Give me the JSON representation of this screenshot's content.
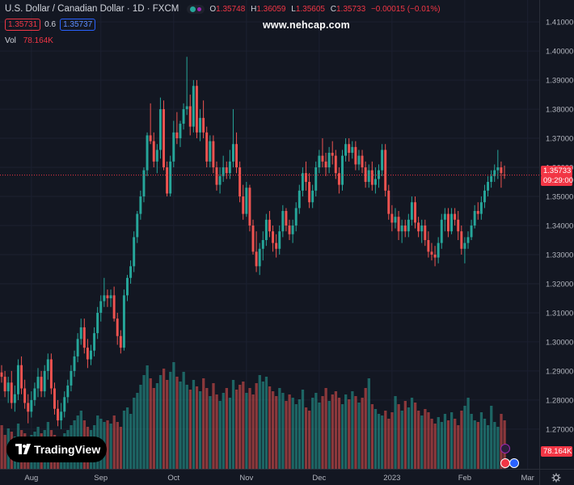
{
  "header": {
    "symbol": "U.S. Dollar / Canadian Dollar · 1D · FXCM",
    "ohlc": {
      "o_label": "O",
      "o": "1.35748",
      "h_label": "H",
      "h": "1.36059",
      "l_label": "L",
      "l": "1.35605",
      "c_label": "C",
      "c": "1.35733",
      "change": "−0.00015 (−0.01%)"
    },
    "sell_price": "1.35731",
    "spread": "0.6",
    "buy_price": "1.35737",
    "volume_label": "Vol",
    "volume_value": "78.164K"
  },
  "watermark": "www.nehcap.com",
  "logo_text": "TradingView",
  "price_badge": {
    "price": "1.35733",
    "countdown": "09:29:00"
  },
  "volume_badge": "78.164K",
  "colors": {
    "up": "#26a69a",
    "down": "#ef5350",
    "background": "#131722",
    "last_price": "#f23645"
  },
  "chart_data": {
    "type": "candlestick",
    "title": "",
    "y_axis": {
      "ticks": [
        "1.41000",
        "1.40000",
        "1.39000",
        "1.38000",
        "1.37000",
        "1.36000",
        "1.35000",
        "1.34000",
        "1.33000",
        "1.32000",
        "1.31000",
        "1.30000",
        "1.29000",
        "1.28000",
        "1.27000"
      ],
      "range": [
        1.2658,
        1.4142
      ]
    },
    "x_axis": {
      "ticks": [
        "Aug",
        "Sep",
        "Oct",
        "Nov",
        "Dec",
        "2023",
        "Feb",
        "Mar"
      ]
    },
    "last_price": 1.35733,
    "candles": [
      {
        "o": 1.2895,
        "h": 1.292,
        "l": 1.286,
        "c": 1.288
      },
      {
        "o": 1.288,
        "h": 1.29,
        "l": 1.281,
        "c": 1.283
      },
      {
        "o": 1.283,
        "h": 1.288,
        "l": 1.279,
        "c": 1.286
      },
      {
        "o": 1.286,
        "h": 1.29,
        "l": 1.277,
        "c": 1.279
      },
      {
        "o": 1.279,
        "h": 1.285,
        "l": 1.276,
        "c": 1.282
      },
      {
        "o": 1.282,
        "h": 1.294,
        "l": 1.28,
        "c": 1.292
      },
      {
        "o": 1.292,
        "h": 1.295,
        "l": 1.282,
        "c": 1.284
      },
      {
        "o": 1.284,
        "h": 1.287,
        "l": 1.277,
        "c": 1.279
      },
      {
        "o": 1.279,
        "h": 1.282,
        "l": 1.272,
        "c": 1.276
      },
      {
        "o": 1.276,
        "h": 1.283,
        "l": 1.274,
        "c": 1.28
      },
      {
        "o": 1.28,
        "h": 1.286,
        "l": 1.278,
        "c": 1.284
      },
      {
        "o": 1.284,
        "h": 1.291,
        "l": 1.281,
        "c": 1.288
      },
      {
        "o": 1.288,
        "h": 1.29,
        "l": 1.281,
        "c": 1.283
      },
      {
        "o": 1.283,
        "h": 1.292,
        "l": 1.281,
        "c": 1.29
      },
      {
        "o": 1.29,
        "h": 1.296,
        "l": 1.287,
        "c": 1.294
      },
      {
        "o": 1.294,
        "h": 1.296,
        "l": 1.282,
        "c": 1.284
      },
      {
        "o": 1.284,
        "h": 1.286,
        "l": 1.275,
        "c": 1.277
      },
      {
        "o": 1.277,
        "h": 1.28,
        "l": 1.271,
        "c": 1.273
      },
      {
        "o": 1.273,
        "h": 1.279,
        "l": 1.27,
        "c": 1.276
      },
      {
        "o": 1.276,
        "h": 1.283,
        "l": 1.274,
        "c": 1.281
      },
      {
        "o": 1.281,
        "h": 1.287,
        "l": 1.279,
        "c": 1.285
      },
      {
        "o": 1.285,
        "h": 1.292,
        "l": 1.283,
        "c": 1.29
      },
      {
        "o": 1.29,
        "h": 1.297,
        "l": 1.288,
        "c": 1.295
      },
      {
        "o": 1.295,
        "h": 1.303,
        "l": 1.293,
        "c": 1.301
      },
      {
        "o": 1.301,
        "h": 1.308,
        "l": 1.299,
        "c": 1.305
      },
      {
        "o": 1.305,
        "h": 1.308,
        "l": 1.296,
        "c": 1.298
      },
      {
        "o": 1.298,
        "h": 1.301,
        "l": 1.291,
        "c": 1.294
      },
      {
        "o": 1.294,
        "h": 1.299,
        "l": 1.292,
        "c": 1.297
      },
      {
        "o": 1.297,
        "h": 1.305,
        "l": 1.295,
        "c": 1.303
      },
      {
        "o": 1.303,
        "h": 1.312,
        "l": 1.301,
        "c": 1.31
      },
      {
        "o": 1.31,
        "h": 1.316,
        "l": 1.307,
        "c": 1.314
      },
      {
        "o": 1.314,
        "h": 1.322,
        "l": 1.312,
        "c": 1.316
      },
      {
        "o": 1.316,
        "h": 1.318,
        "l": 1.312,
        "c": 1.315
      },
      {
        "o": 1.315,
        "h": 1.318,
        "l": 1.312,
        "c": 1.316
      },
      {
        "o": 1.316,
        "h": 1.319,
        "l": 1.307,
        "c": 1.308
      },
      {
        "o": 1.308,
        "h": 1.31,
        "l": 1.299,
        "c": 1.302
      },
      {
        "o": 1.302,
        "h": 1.304,
        "l": 1.296,
        "c": 1.298
      },
      {
        "o": 1.298,
        "h": 1.318,
        "l": 1.297,
        "c": 1.316
      },
      {
        "o": 1.316,
        "h": 1.323,
        "l": 1.314,
        "c": 1.322
      },
      {
        "o": 1.322,
        "h": 1.328,
        "l": 1.32,
        "c": 1.326
      },
      {
        "o": 1.326,
        "h": 1.338,
        "l": 1.324,
        "c": 1.336
      },
      {
        "o": 1.336,
        "h": 1.345,
        "l": 1.334,
        "c": 1.344
      },
      {
        "o": 1.344,
        "h": 1.352,
        "l": 1.342,
        "c": 1.35
      },
      {
        "o": 1.35,
        "h": 1.36,
        "l": 1.348,
        "c": 1.359
      },
      {
        "o": 1.359,
        "h": 1.372,
        "l": 1.357,
        "c": 1.371
      },
      {
        "o": 1.371,
        "h": 1.382,
        "l": 1.368,
        "c": 1.369
      },
      {
        "o": 1.369,
        "h": 1.372,
        "l": 1.36,
        "c": 1.362
      },
      {
        "o": 1.362,
        "h": 1.368,
        "l": 1.358,
        "c": 1.366
      },
      {
        "o": 1.366,
        "h": 1.384,
        "l": 1.363,
        "c": 1.38
      },
      {
        "o": 1.38,
        "h": 1.383,
        "l": 1.359,
        "c": 1.36
      },
      {
        "o": 1.36,
        "h": 1.362,
        "l": 1.35,
        "c": 1.351
      },
      {
        "o": 1.351,
        "h": 1.364,
        "l": 1.35,
        "c": 1.362
      },
      {
        "o": 1.362,
        "h": 1.376,
        "l": 1.36,
        "c": 1.372
      },
      {
        "o": 1.372,
        "h": 1.379,
        "l": 1.368,
        "c": 1.37
      },
      {
        "o": 1.37,
        "h": 1.376,
        "l": 1.367,
        "c": 1.375
      },
      {
        "o": 1.375,
        "h": 1.382,
        "l": 1.373,
        "c": 1.38
      },
      {
        "o": 1.38,
        "h": 1.398,
        "l": 1.378,
        "c": 1.381
      },
      {
        "o": 1.381,
        "h": 1.385,
        "l": 1.371,
        "c": 1.374
      },
      {
        "o": 1.374,
        "h": 1.39,
        "l": 1.372,
        "c": 1.388
      },
      {
        "o": 1.388,
        "h": 1.39,
        "l": 1.37,
        "c": 1.372
      },
      {
        "o": 1.372,
        "h": 1.38,
        "l": 1.369,
        "c": 1.377
      },
      {
        "o": 1.377,
        "h": 1.383,
        "l": 1.37,
        "c": 1.372
      },
      {
        "o": 1.372,
        "h": 1.374,
        "l": 1.36,
        "c": 1.362
      },
      {
        "o": 1.362,
        "h": 1.371,
        "l": 1.36,
        "c": 1.369
      },
      {
        "o": 1.369,
        "h": 1.371,
        "l": 1.358,
        "c": 1.36
      },
      {
        "o": 1.36,
        "h": 1.362,
        "l": 1.352,
        "c": 1.354
      },
      {
        "o": 1.354,
        "h": 1.36,
        "l": 1.351,
        "c": 1.357
      },
      {
        "o": 1.357,
        "h": 1.364,
        "l": 1.355,
        "c": 1.36
      },
      {
        "o": 1.36,
        "h": 1.362,
        "l": 1.356,
        "c": 1.358
      },
      {
        "o": 1.358,
        "h": 1.366,
        "l": 1.356,
        "c": 1.362
      },
      {
        "o": 1.362,
        "h": 1.38,
        "l": 1.36,
        "c": 1.368
      },
      {
        "o": 1.368,
        "h": 1.372,
        "l": 1.358,
        "c": 1.36
      },
      {
        "o": 1.36,
        "h": 1.362,
        "l": 1.348,
        "c": 1.35
      },
      {
        "o": 1.35,
        "h": 1.354,
        "l": 1.342,
        "c": 1.344
      },
      {
        "o": 1.344,
        "h": 1.355,
        "l": 1.343,
        "c": 1.353
      },
      {
        "o": 1.353,
        "h": 1.354,
        "l": 1.338,
        "c": 1.34
      },
      {
        "o": 1.34,
        "h": 1.342,
        "l": 1.33,
        "c": 1.331
      },
      {
        "o": 1.331,
        "h": 1.338,
        "l": 1.324,
        "c": 1.326
      },
      {
        "o": 1.326,
        "h": 1.334,
        "l": 1.323,
        "c": 1.332
      },
      {
        "o": 1.332,
        "h": 1.338,
        "l": 1.328,
        "c": 1.335
      },
      {
        "o": 1.335,
        "h": 1.344,
        "l": 1.333,
        "c": 1.342
      },
      {
        "o": 1.342,
        "h": 1.345,
        "l": 1.336,
        "c": 1.338
      },
      {
        "o": 1.338,
        "h": 1.34,
        "l": 1.331,
        "c": 1.334
      },
      {
        "o": 1.334,
        "h": 1.337,
        "l": 1.329,
        "c": 1.332
      },
      {
        "o": 1.332,
        "h": 1.34,
        "l": 1.33,
        "c": 1.338
      },
      {
        "o": 1.338,
        "h": 1.347,
        "l": 1.336,
        "c": 1.345
      },
      {
        "o": 1.345,
        "h": 1.346,
        "l": 1.338,
        "c": 1.34
      },
      {
        "o": 1.34,
        "h": 1.342,
        "l": 1.335,
        "c": 1.337
      },
      {
        "o": 1.337,
        "h": 1.342,
        "l": 1.334,
        "c": 1.34
      },
      {
        "o": 1.34,
        "h": 1.348,
        "l": 1.338,
        "c": 1.346
      },
      {
        "o": 1.346,
        "h": 1.354,
        "l": 1.344,
        "c": 1.352
      },
      {
        "o": 1.352,
        "h": 1.36,
        "l": 1.35,
        "c": 1.358
      },
      {
        "o": 1.358,
        "h": 1.362,
        "l": 1.352,
        "c": 1.355
      },
      {
        "o": 1.355,
        "h": 1.358,
        "l": 1.346,
        "c": 1.348
      },
      {
        "o": 1.348,
        "h": 1.354,
        "l": 1.346,
        "c": 1.352
      },
      {
        "o": 1.352,
        "h": 1.362,
        "l": 1.35,
        "c": 1.36
      },
      {
        "o": 1.36,
        "h": 1.366,
        "l": 1.358,
        "c": 1.364
      },
      {
        "o": 1.364,
        "h": 1.37,
        "l": 1.36,
        "c": 1.362
      },
      {
        "o": 1.362,
        "h": 1.365,
        "l": 1.357,
        "c": 1.36
      },
      {
        "o": 1.36,
        "h": 1.367,
        "l": 1.358,
        "c": 1.365
      },
      {
        "o": 1.365,
        "h": 1.369,
        "l": 1.361,
        "c": 1.364
      },
      {
        "o": 1.364,
        "h": 1.366,
        "l": 1.356,
        "c": 1.358
      },
      {
        "o": 1.358,
        "h": 1.36,
        "l": 1.351,
        "c": 1.354
      },
      {
        "o": 1.354,
        "h": 1.366,
        "l": 1.352,
        "c": 1.364
      },
      {
        "o": 1.364,
        "h": 1.37,
        "l": 1.362,
        "c": 1.368
      },
      {
        "o": 1.368,
        "h": 1.37,
        "l": 1.362,
        "c": 1.365
      },
      {
        "o": 1.365,
        "h": 1.369,
        "l": 1.363,
        "c": 1.367
      },
      {
        "o": 1.367,
        "h": 1.369,
        "l": 1.359,
        "c": 1.361
      },
      {
        "o": 1.361,
        "h": 1.366,
        "l": 1.359,
        "c": 1.364
      },
      {
        "o": 1.364,
        "h": 1.366,
        "l": 1.358,
        "c": 1.36
      },
      {
        "o": 1.36,
        "h": 1.362,
        "l": 1.353,
        "c": 1.355
      },
      {
        "o": 1.355,
        "h": 1.361,
        "l": 1.353,
        "c": 1.359
      },
      {
        "o": 1.359,
        "h": 1.362,
        "l": 1.352,
        "c": 1.354
      },
      {
        "o": 1.354,
        "h": 1.36,
        "l": 1.351,
        "c": 1.356
      },
      {
        "o": 1.356,
        "h": 1.361,
        "l": 1.353,
        "c": 1.359
      },
      {
        "o": 1.359,
        "h": 1.368,
        "l": 1.357,
        "c": 1.366
      },
      {
        "o": 1.366,
        "h": 1.368,
        "l": 1.35,
        "c": 1.352
      },
      {
        "o": 1.352,
        "h": 1.354,
        "l": 1.342,
        "c": 1.344
      },
      {
        "o": 1.344,
        "h": 1.347,
        "l": 1.338,
        "c": 1.341
      },
      {
        "o": 1.341,
        "h": 1.346,
        "l": 1.339,
        "c": 1.343
      },
      {
        "o": 1.343,
        "h": 1.345,
        "l": 1.335,
        "c": 1.338
      },
      {
        "o": 1.338,
        "h": 1.342,
        "l": 1.334,
        "c": 1.34
      },
      {
        "o": 1.34,
        "h": 1.342,
        "l": 1.336,
        "c": 1.338
      },
      {
        "o": 1.338,
        "h": 1.344,
        "l": 1.336,
        "c": 1.342
      },
      {
        "o": 1.342,
        "h": 1.35,
        "l": 1.34,
        "c": 1.348
      },
      {
        "o": 1.348,
        "h": 1.35,
        "l": 1.339,
        "c": 1.341
      },
      {
        "o": 1.341,
        "h": 1.343,
        "l": 1.336,
        "c": 1.338
      },
      {
        "o": 1.338,
        "h": 1.342,
        "l": 1.334,
        "c": 1.34
      },
      {
        "o": 1.34,
        "h": 1.342,
        "l": 1.333,
        "c": 1.335
      },
      {
        "o": 1.335,
        "h": 1.338,
        "l": 1.329,
        "c": 1.331
      },
      {
        "o": 1.331,
        "h": 1.334,
        "l": 1.328,
        "c": 1.33
      },
      {
        "o": 1.33,
        "h": 1.333,
        "l": 1.326,
        "c": 1.329
      },
      {
        "o": 1.329,
        "h": 1.336,
        "l": 1.327,
        "c": 1.334
      },
      {
        "o": 1.334,
        "h": 1.344,
        "l": 1.332,
        "c": 1.342
      },
      {
        "o": 1.342,
        "h": 1.346,
        "l": 1.338,
        "c": 1.344
      },
      {
        "o": 1.344,
        "h": 1.346,
        "l": 1.336,
        "c": 1.338
      },
      {
        "o": 1.338,
        "h": 1.346,
        "l": 1.337,
        "c": 1.344
      },
      {
        "o": 1.344,
        "h": 1.346,
        "l": 1.34,
        "c": 1.342
      },
      {
        "o": 1.342,
        "h": 1.345,
        "l": 1.335,
        "c": 1.338
      },
      {
        "o": 1.338,
        "h": 1.34,
        "l": 1.33,
        "c": 1.332
      },
      {
        "o": 1.332,
        "h": 1.336,
        "l": 1.327,
        "c": 1.334
      },
      {
        "o": 1.334,
        "h": 1.338,
        "l": 1.332,
        "c": 1.336
      },
      {
        "o": 1.336,
        "h": 1.342,
        "l": 1.335,
        "c": 1.34
      },
      {
        "o": 1.34,
        "h": 1.347,
        "l": 1.339,
        "c": 1.345
      },
      {
        "o": 1.345,
        "h": 1.348,
        "l": 1.342,
        "c": 1.344
      },
      {
        "o": 1.344,
        "h": 1.35,
        "l": 1.342,
        "c": 1.348
      },
      {
        "o": 1.348,
        "h": 1.354,
        "l": 1.346,
        "c": 1.352
      },
      {
        "o": 1.352,
        "h": 1.357,
        "l": 1.35,
        "c": 1.355
      },
      {
        "o": 1.355,
        "h": 1.359,
        "l": 1.353,
        "c": 1.357
      },
      {
        "o": 1.357,
        "h": 1.361,
        "l": 1.355,
        "c": 1.359
      },
      {
        "o": 1.359,
        "h": 1.366,
        "l": 1.356,
        "c": 1.36
      },
      {
        "o": 1.36,
        "h": 1.362,
        "l": 1.353,
        "c": 1.358
      },
      {
        "o": 1.35748,
        "h": 1.36059,
        "l": 1.35605,
        "c": 1.35733
      }
    ],
    "volumes": [
      0.27,
      0.21,
      0.25,
      0.23,
      0.2,
      0.28,
      0.24,
      0.22,
      0.19,
      0.21,
      0.23,
      0.26,
      0.22,
      0.24,
      0.29,
      0.24,
      0.21,
      0.18,
      0.2,
      0.22,
      0.24,
      0.27,
      0.3,
      0.33,
      0.36,
      0.3,
      0.26,
      0.24,
      0.27,
      0.33,
      0.31,
      0.29,
      0.3,
      0.28,
      0.33,
      0.29,
      0.26,
      0.36,
      0.38,
      0.34,
      0.44,
      0.47,
      0.52,
      0.58,
      0.64,
      0.56,
      0.5,
      0.53,
      0.58,
      0.62,
      0.55,
      0.6,
      0.66,
      0.57,
      0.54,
      0.6,
      0.52,
      0.49,
      0.55,
      0.51,
      0.48,
      0.56,
      0.5,
      0.45,
      0.53,
      0.46,
      0.42,
      0.47,
      0.5,
      0.44,
      0.55,
      0.49,
      0.52,
      0.54,
      0.47,
      0.5,
      0.46,
      0.53,
      0.58,
      0.54,
      0.57,
      0.51,
      0.48,
      0.45,
      0.5,
      0.47,
      0.42,
      0.46,
      0.44,
      0.4,
      0.43,
      0.49,
      0.38,
      0.36,
      0.44,
      0.47,
      0.41,
      0.45,
      0.5,
      0.42,
      0.46,
      0.48,
      0.44,
      0.4,
      0.46,
      0.43,
      0.48,
      0.45,
      0.41,
      0.44,
      0.5,
      0.56,
      0.4,
      0.37,
      0.34,
      0.33,
      0.36,
      0.31,
      0.35,
      0.45,
      0.4,
      0.36,
      0.42,
      0.38,
      0.44,
      0.41,
      0.36,
      0.33,
      0.37,
      0.35,
      0.31,
      0.28,
      0.32,
      0.29,
      0.34,
      0.3,
      0.35,
      0.31,
      0.27,
      0.36,
      0.39,
      0.44,
      0.34,
      0.3,
      0.29,
      0.35,
      0.31,
      0.27,
      0.39,
      0.29,
      0.26,
      0.34,
      0.3,
      0.38,
      0.48,
      0.23
    ]
  }
}
